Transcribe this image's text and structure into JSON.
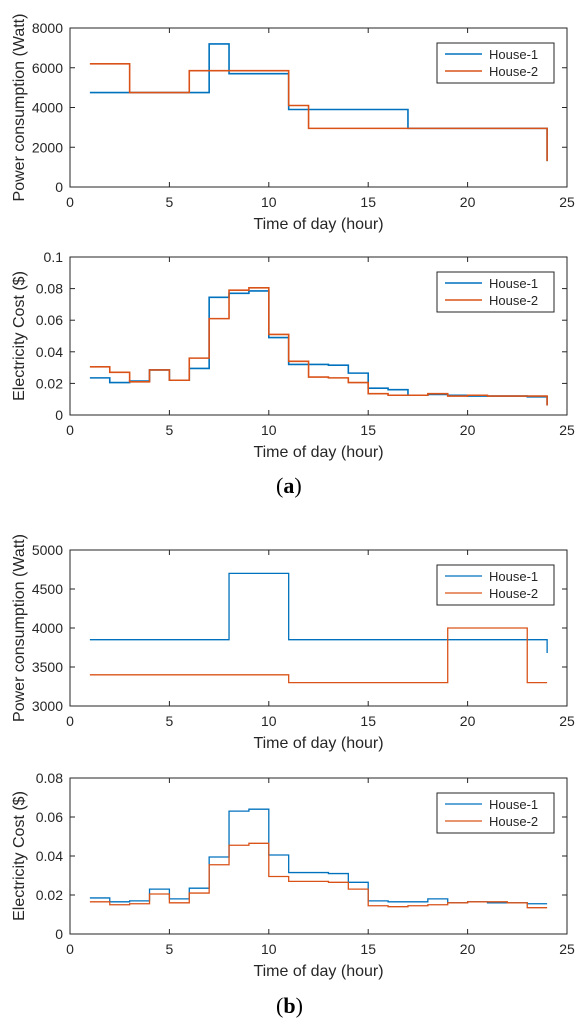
{
  "captions": {
    "a": {
      "open": "(",
      "letter": "a",
      "close": ")"
    },
    "b": {
      "open": "(",
      "letter": "b",
      "close": ")"
    }
  },
  "colors": {
    "house1": "#0072BD",
    "house2": "#D95319"
  },
  "chart_data": [
    {
      "type": "line",
      "step": "post",
      "title": "",
      "xlabel": "Time of day (hour)",
      "ylabel": "Power consumption (Watt)",
      "xlim": [
        0,
        25
      ],
      "ylim": [
        0,
        8000
      ],
      "xticks": [
        0,
        5,
        10,
        15,
        20,
        25
      ],
      "yticks": [
        0,
        2000,
        4000,
        6000,
        8000
      ],
      "legend": "top-right",
      "grid": false,
      "series": [
        {
          "name": "House-1",
          "x": [
            1,
            2,
            3,
            4,
            5,
            6,
            7,
            8,
            9,
            10,
            11,
            12,
            13,
            14,
            15,
            16,
            17,
            18,
            19,
            20,
            21,
            22,
            23,
            24
          ],
          "values": [
            4750,
            4750,
            4750,
            4750,
            4750,
            4750,
            7200,
            5700,
            5700,
            5700,
            3900,
            3900,
            3900,
            3900,
            3900,
            3900,
            2950,
            2950,
            2950,
            2950,
            2950,
            2950,
            2950,
            1300
          ]
        },
        {
          "name": "House-2",
          "x": [
            1,
            2,
            3,
            4,
            5,
            6,
            7,
            8,
            9,
            10,
            11,
            12,
            13,
            14,
            15,
            16,
            17,
            18,
            19,
            20,
            21,
            22,
            23,
            24
          ],
          "values": [
            6200,
            6200,
            4750,
            4750,
            4750,
            5850,
            5850,
            5850,
            5850,
            5850,
            4100,
            2950,
            2950,
            2950,
            2950,
            2950,
            2950,
            2950,
            2950,
            2950,
            2950,
            2950,
            2950,
            1300
          ]
        }
      ]
    },
    {
      "type": "line",
      "step": "post",
      "title": "",
      "xlabel": "Time of day (hour)",
      "ylabel": "Electricity Cost ($)",
      "xlim": [
        0,
        25
      ],
      "ylim": [
        0,
        0.1
      ],
      "xticks": [
        0,
        5,
        10,
        15,
        20,
        25
      ],
      "yticks": [
        0,
        0.02,
        0.04,
        0.06,
        0.08,
        0.1
      ],
      "legend": "top-right",
      "grid": false,
      "series": [
        {
          "name": "House-1",
          "x": [
            1,
            2,
            3,
            4,
            5,
            6,
            7,
            8,
            9,
            10,
            11,
            12,
            13,
            14,
            15,
            16,
            17,
            18,
            19,
            20,
            21,
            22,
            23,
            24
          ],
          "values": [
            0.0235,
            0.0205,
            0.0215,
            0.0285,
            0.022,
            0.0295,
            0.0745,
            0.077,
            0.0785,
            0.049,
            0.032,
            0.032,
            0.0315,
            0.0265,
            0.017,
            0.016,
            0.0125,
            0.013,
            0.0125,
            0.012,
            0.012,
            0.012,
            0.0115,
            0.006
          ]
        },
        {
          "name": "House-2",
          "x": [
            1,
            2,
            3,
            4,
            5,
            6,
            7,
            8,
            9,
            10,
            11,
            12,
            13,
            14,
            15,
            16,
            17,
            18,
            19,
            20,
            21,
            22,
            23,
            24
          ],
          "values": [
            0.0305,
            0.027,
            0.021,
            0.0285,
            0.022,
            0.036,
            0.061,
            0.079,
            0.0805,
            0.051,
            0.034,
            0.024,
            0.0235,
            0.0205,
            0.0135,
            0.0125,
            0.0125,
            0.0135,
            0.012,
            0.0125,
            0.012,
            0.012,
            0.012,
            0.006
          ]
        }
      ]
    },
    {
      "type": "line",
      "step": "post",
      "title": "",
      "xlabel": "Time of day (hour)",
      "ylabel": "Power consumption (Watt)",
      "xlim": [
        0,
        25
      ],
      "ylim": [
        3000,
        5000
      ],
      "xticks": [
        0,
        5,
        10,
        15,
        20,
        25
      ],
      "yticks": [
        3000,
        3500,
        4000,
        4500,
        5000
      ],
      "legend": "top-right",
      "grid": false,
      "series": [
        {
          "name": "House-1",
          "x": [
            1,
            2,
            3,
            4,
            5,
            6,
            7,
            8,
            9,
            10,
            11,
            12,
            13,
            14,
            15,
            16,
            17,
            18,
            19,
            20,
            21,
            22,
            23,
            24
          ],
          "values": [
            3850,
            3850,
            3850,
            3850,
            3850,
            3850,
            3850,
            4700,
            4700,
            4700,
            3850,
            3850,
            3850,
            3850,
            3850,
            3850,
            3850,
            3850,
            3850,
            3850,
            3850,
            3850,
            3850,
            3680
          ]
        },
        {
          "name": "House-2",
          "x": [
            1,
            2,
            3,
            4,
            5,
            6,
            7,
            8,
            9,
            10,
            11,
            12,
            13,
            14,
            15,
            16,
            17,
            18,
            19,
            20,
            21,
            22,
            23,
            24
          ],
          "values": [
            3400,
            3400,
            3400,
            3400,
            3400,
            3400,
            3400,
            3400,
            3400,
            3400,
            3300,
            3300,
            3300,
            3300,
            3300,
            3300,
            3300,
            3300,
            4000,
            4000,
            4000,
            4000,
            3300,
            3300
          ]
        }
      ]
    },
    {
      "type": "line",
      "step": "post",
      "title": "",
      "xlabel": "Time of day (hour)",
      "ylabel": "Electricity Cost ($)",
      "xlim": [
        0,
        25
      ],
      "ylim": [
        0,
        0.08
      ],
      "xticks": [
        0,
        5,
        10,
        15,
        20,
        25
      ],
      "yticks": [
        0,
        0.02,
        0.04,
        0.06,
        0.08
      ],
      "legend": "top-right",
      "grid": false,
      "series": [
        {
          "name": "House-1",
          "x": [
            1,
            2,
            3,
            4,
            5,
            6,
            7,
            8,
            9,
            10,
            11,
            12,
            13,
            14,
            15,
            16,
            17,
            18,
            19,
            20,
            21,
            22,
            23,
            24
          ],
          "values": [
            0.0185,
            0.0165,
            0.017,
            0.023,
            0.018,
            0.0235,
            0.0395,
            0.063,
            0.064,
            0.0405,
            0.0315,
            0.0315,
            0.031,
            0.0265,
            0.017,
            0.0165,
            0.0165,
            0.018,
            0.016,
            0.0165,
            0.016,
            0.016,
            0.0155,
            0.0155
          ]
        },
        {
          "name": "House-2",
          "x": [
            1,
            2,
            3,
            4,
            5,
            6,
            7,
            8,
            9,
            10,
            11,
            12,
            13,
            14,
            15,
            16,
            17,
            18,
            19,
            20,
            21,
            22,
            23,
            24
          ],
          "values": [
            0.0165,
            0.015,
            0.0155,
            0.0205,
            0.016,
            0.021,
            0.0355,
            0.0455,
            0.0465,
            0.0295,
            0.027,
            0.027,
            0.0265,
            0.023,
            0.0145,
            0.014,
            0.0145,
            0.015,
            0.016,
            0.0165,
            0.0165,
            0.016,
            0.0135,
            0.0135
          ]
        }
      ]
    }
  ]
}
